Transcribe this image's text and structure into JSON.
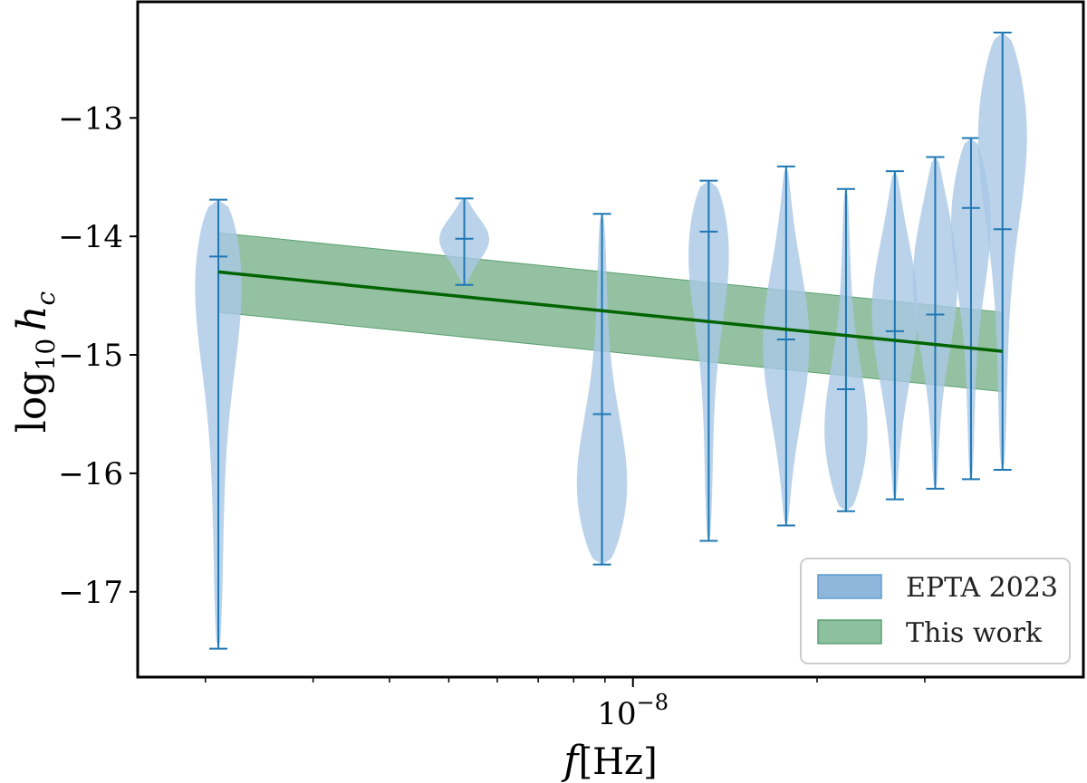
{
  "chart_data": {
    "type": "violin",
    "xlabel": {
      "main": "f",
      "unit": "[Hz]"
    },
    "ylabel": {
      "base": "log",
      "sub": "10",
      "var": "h",
      "varsub": "c"
    },
    "x_scale": "log",
    "x_tick_major": {
      "value": 1e-08,
      "base": "10",
      "exp": "−8"
    },
    "x_minor_ticks": [
      2e-09,
      3e-09,
      4e-09,
      5e-09,
      6e-09,
      7e-09,
      8e-09,
      9e-09,
      2e-08,
      3e-08
    ],
    "xlim": [
      1.55e-09,
      5.45e-08
    ],
    "ylim": [
      -17.72,
      -12.02
    ],
    "y_ticks": [
      {
        "value": -17,
        "label": "−17"
      },
      {
        "value": -16,
        "label": "−16"
      },
      {
        "value": -15,
        "label": "−15"
      },
      {
        "value": -14,
        "label": "−14"
      },
      {
        "value": -13,
        "label": "−13"
      }
    ],
    "legend": {
      "position": "lower-right",
      "entries": [
        {
          "label": "EPTA 2023",
          "color": "#8fb7db",
          "edge": "#5f9ccd"
        },
        {
          "label": "This work",
          "color": "#8cc09f",
          "edge": "#5f9f76"
        }
      ]
    },
    "series": [
      {
        "name": "EPTA 2023",
        "type": "violin",
        "color": "#1f77b4",
        "fill": "#a9c8e6",
        "bins": [
          {
            "f": 2.1e-09,
            "min": -17.48,
            "median": -14.17,
            "max": -13.69,
            "mode": -14.08,
            "width": 0.42
          },
          {
            "f": 5.3e-09,
            "min": -14.41,
            "median": -14.02,
            "max": -13.68,
            "mode": -14.02,
            "width": 0.33
          },
          {
            "f": 8.9e-09,
            "min": -16.77,
            "median": -15.5,
            "max": -13.81,
            "mode": -16.3,
            "width": 0.42
          },
          {
            "f": 1.33e-08,
            "min": -16.57,
            "median": -13.96,
            "max": -13.53,
            "mode": -13.9,
            "width": 0.34
          },
          {
            "f": 1.78e-08,
            "min": -16.44,
            "median": -14.87,
            "max": -13.41,
            "mode": -14.9,
            "width": 0.3
          },
          {
            "f": 2.23e-08,
            "min": -16.32,
            "median": -15.29,
            "max": -13.6,
            "mode": -15.8,
            "width": 0.33
          },
          {
            "f": 2.68e-08,
            "min": -16.22,
            "median": -14.8,
            "max": -13.45,
            "mode": -14.6,
            "width": 0.3
          },
          {
            "f": 3.12e-08,
            "min": -16.13,
            "median": -14.66,
            "max": -13.33,
            "mode": -14.3,
            "width": 0.3
          },
          {
            "f": 3.57e-08,
            "min": -16.05,
            "median": -13.76,
            "max": -13.17,
            "mode": -13.7,
            "width": 0.3
          },
          {
            "f": 4.02e-08,
            "min": -15.97,
            "median": -13.94,
            "max": -12.28,
            "mode": -12.9,
            "width": 0.4
          }
        ]
      },
      {
        "name": "This work",
        "type": "line_band",
        "color": "#006400",
        "band_color": "#5aa06f",
        "line": [
          {
            "f": 2.1e-09,
            "y": -14.3
          },
          {
            "f": 4.02e-08,
            "y": -14.97
          }
        ],
        "band_upper": [
          {
            "f": 2.1e-09,
            "y": -13.97
          },
          {
            "f": 4.02e-08,
            "y": -14.64
          }
        ],
        "band_lower": [
          {
            "f": 2.1e-09,
            "y": -14.64
          },
          {
            "f": 4.02e-08,
            "y": -15.31
          }
        ]
      }
    ]
  }
}
